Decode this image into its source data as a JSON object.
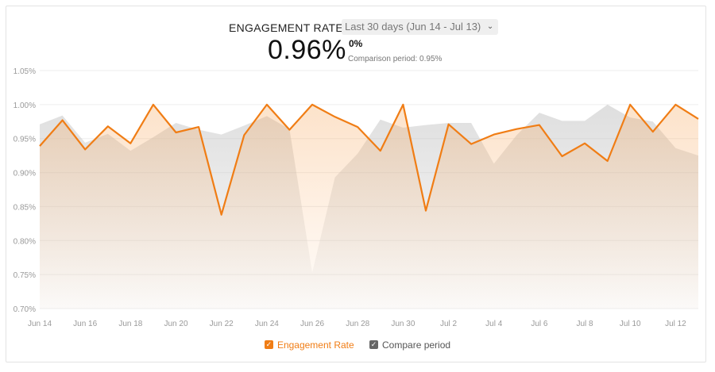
{
  "header": {
    "title": "ENGAGEMENT RATE",
    "date_range": "Last 30 days (Jun 14 - Jul 13)",
    "value": "0.96%",
    "delta": "0%",
    "comparison": "Comparison period: 0.95%"
  },
  "colors": {
    "engagement": "#f07d15",
    "compare": "#cfcfcf",
    "axis_text": "#999999",
    "grid": "#eeeeee"
  },
  "legend": {
    "engagement_label": "Engagement Rate",
    "compare_label": "Compare period"
  },
  "chart_data": {
    "type": "line",
    "title": "ENGAGEMENT RATE",
    "xlabel": "",
    "ylabel": "",
    "ylim": [
      0.7,
      1.05
    ],
    "yticks": [
      "1.05%",
      "1.00%",
      "0.95%",
      "0.90%",
      "0.85%",
      "0.80%",
      "0.75%",
      "0.70%"
    ],
    "ytick_values": [
      1.05,
      1.0,
      0.95,
      0.9,
      0.85,
      0.8,
      0.75,
      0.7
    ],
    "x_tick_labels": [
      "Jun 14",
      "Jun 16",
      "Jun 18",
      "Jun 20",
      "Jun 22",
      "Jun 24",
      "Jun 26",
      "Jun 28",
      "Jun 30",
      "Jul 2",
      "Jul 4",
      "Jul 6",
      "Jul 8",
      "Jul 10",
      "Jul 12"
    ],
    "x_dates": [
      "Jun 14",
      "Jun 15",
      "Jun 16",
      "Jun 17",
      "Jun 18",
      "Jun 19",
      "Jun 20",
      "Jun 21",
      "Jun 22",
      "Jun 23",
      "Jun 24",
      "Jun 25",
      "Jun 26",
      "Jun 27",
      "Jun 28",
      "Jun 29",
      "Jun 30",
      "Jul 1",
      "Jul 2",
      "Jul 3",
      "Jul 4",
      "Jul 5",
      "Jul 6",
      "Jul 7",
      "Jul 8",
      "Jul 9",
      "Jul 10",
      "Jul 11",
      "Jul 12",
      "Jul 13"
    ],
    "grid": true,
    "legend_position": "bottom-center",
    "series": [
      {
        "name": "Engagement Rate",
        "values": [
          0.939,
          0.977,
          0.934,
          0.968,
          0.943,
          1.0,
          0.959,
          0.967,
          0.838,
          0.955,
          1.0,
          0.963,
          1.0,
          0.982,
          0.967,
          0.932,
          1.0,
          0.844,
          0.971,
          0.942,
          0.956,
          0.964,
          0.97,
          0.924,
          0.943,
          0.917,
          1.0,
          0.96,
          1.0,
          0.979
        ]
      },
      {
        "name": "Compare period",
        "values": [
          0.971,
          0.984,
          0.944,
          0.957,
          0.932,
          0.952,
          0.973,
          0.963,
          0.956,
          0.969,
          0.983,
          0.964,
          0.753,
          0.893,
          0.928,
          0.978,
          0.966,
          0.97,
          0.973,
          0.973,
          0.913,
          0.955,
          0.988,
          0.976,
          0.976,
          1.0,
          0.981,
          0.975,
          0.936,
          0.925
        ]
      }
    ]
  }
}
